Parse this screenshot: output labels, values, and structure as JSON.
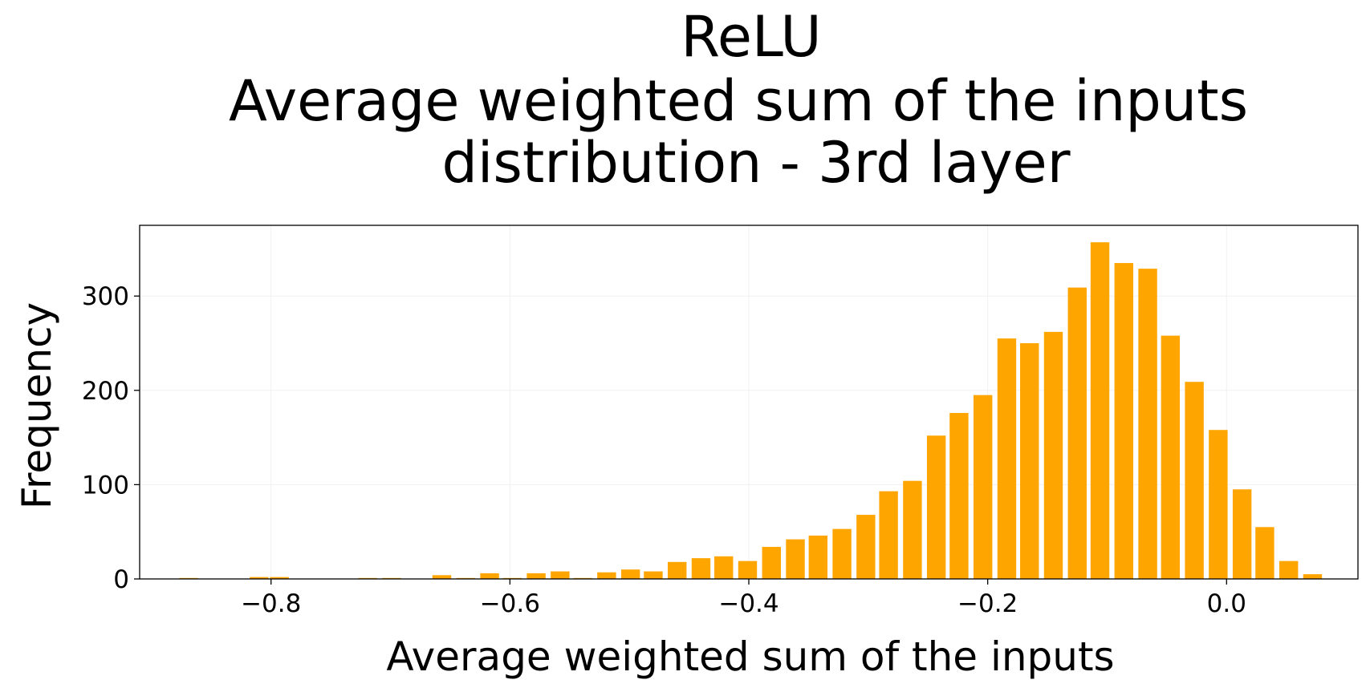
{
  "chart_data": {
    "type": "bar",
    "title_lines": [
      "ReLU",
      "Average weighted sum of the inputs",
      "distribution - 3rd layer"
    ],
    "xlabel": "Average weighted sum of the inputs",
    "ylabel": "Frequency",
    "bar_color": "#ffa500",
    "grid": true,
    "xlim": [
      -0.91,
      0.11
    ],
    "ylim": [
      0,
      375
    ],
    "bin_width": 0.0185,
    "xticks": [
      {
        "value": -0.8,
        "label": "−0.8"
      },
      {
        "value": -0.6,
        "label": "−0.6"
      },
      {
        "value": -0.4,
        "label": "−0.4"
      },
      {
        "value": -0.2,
        "label": "−0.2"
      },
      {
        "value": 0.0,
        "label": "0.0"
      }
    ],
    "yticks": [
      {
        "value": 0,
        "label": "0"
      },
      {
        "value": 100,
        "label": "100"
      },
      {
        "value": 200,
        "label": "200"
      },
      {
        "value": 300,
        "label": "300"
      }
    ],
    "x": [
      -0.869,
      -0.81,
      -0.793,
      -0.719,
      -0.699,
      -0.657,
      -0.637,
      -0.617,
      -0.598,
      -0.578,
      -0.558,
      -0.539,
      -0.519,
      -0.499,
      -0.48,
      -0.46,
      -0.44,
      -0.421,
      -0.401,
      -0.381,
      -0.361,
      -0.342,
      -0.322,
      -0.302,
      -0.283,
      -0.263,
      -0.243,
      -0.224,
      -0.204,
      -0.184,
      -0.165,
      -0.145,
      -0.125,
      -0.106,
      -0.086,
      -0.066,
      -0.047,
      -0.027,
      -0.007,
      0.013,
      0.032,
      0.052,
      0.072
    ],
    "values": [
      1,
      2,
      2,
      1,
      1,
      4,
      1,
      6,
      1,
      6,
      8,
      1,
      7,
      10,
      8,
      18,
      22,
      24,
      19,
      34,
      42,
      46,
      53,
      68,
      93,
      104,
      152,
      176,
      195,
      255,
      250,
      262,
      309,
      357,
      335,
      329,
      258,
      209,
      158,
      95,
      55,
      19,
      5
    ]
  }
}
